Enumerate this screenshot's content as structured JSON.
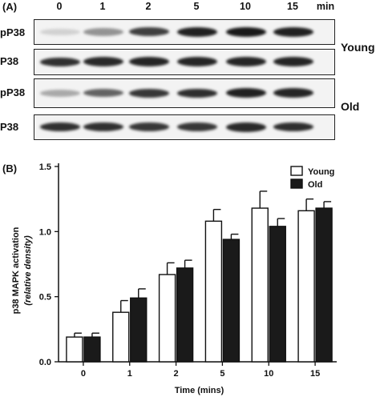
{
  "panel_a": {
    "label": "(A)",
    "lanes": [
      "0",
      "1",
      "2",
      "5",
      "10",
      "15"
    ],
    "unit": "min",
    "rows": [
      {
        "label": "pP38",
        "intensity": [
          0.12,
          0.4,
          0.78,
          0.92,
          0.95,
          0.92
        ]
      },
      {
        "label": "P38",
        "intensity": [
          0.85,
          0.88,
          0.9,
          0.9,
          0.9,
          0.9
        ]
      },
      {
        "label": "pP38",
        "intensity": [
          0.3,
          0.62,
          0.82,
          0.86,
          0.92,
          0.9
        ]
      },
      {
        "label": "P38",
        "intensity": [
          0.85,
          0.85,
          0.82,
          0.82,
          0.88,
          0.86
        ]
      }
    ],
    "groups": [
      "Young",
      "Old"
    ]
  },
  "panel_b": {
    "label": "(B)"
  },
  "chart_data": {
    "type": "bar",
    "xlabel": "Time (mins)",
    "ylabel": "p38 MAPK activation",
    "ylabel_sub": "(relative density)",
    "categories": [
      "0",
      "1",
      "2",
      "5",
      "10",
      "15"
    ],
    "ylim": [
      0,
      1.5
    ],
    "yticks": [
      "0.0",
      "0.5",
      "1.0",
      "1.5"
    ],
    "legend_position": "top-right",
    "series": [
      {
        "name": "Young",
        "color": "#ffffff",
        "values": [
          0.19,
          0.38,
          0.67,
          1.08,
          1.18,
          1.16
        ],
        "errors": [
          0.03,
          0.09,
          0.09,
          0.09,
          0.13,
          0.09
        ]
      },
      {
        "name": "Old",
        "color": "#1a1a1a",
        "values": [
          0.19,
          0.49,
          0.72,
          0.94,
          1.04,
          1.18
        ],
        "errors": [
          0.03,
          0.07,
          0.06,
          0.04,
          0.06,
          0.05
        ]
      }
    ]
  }
}
